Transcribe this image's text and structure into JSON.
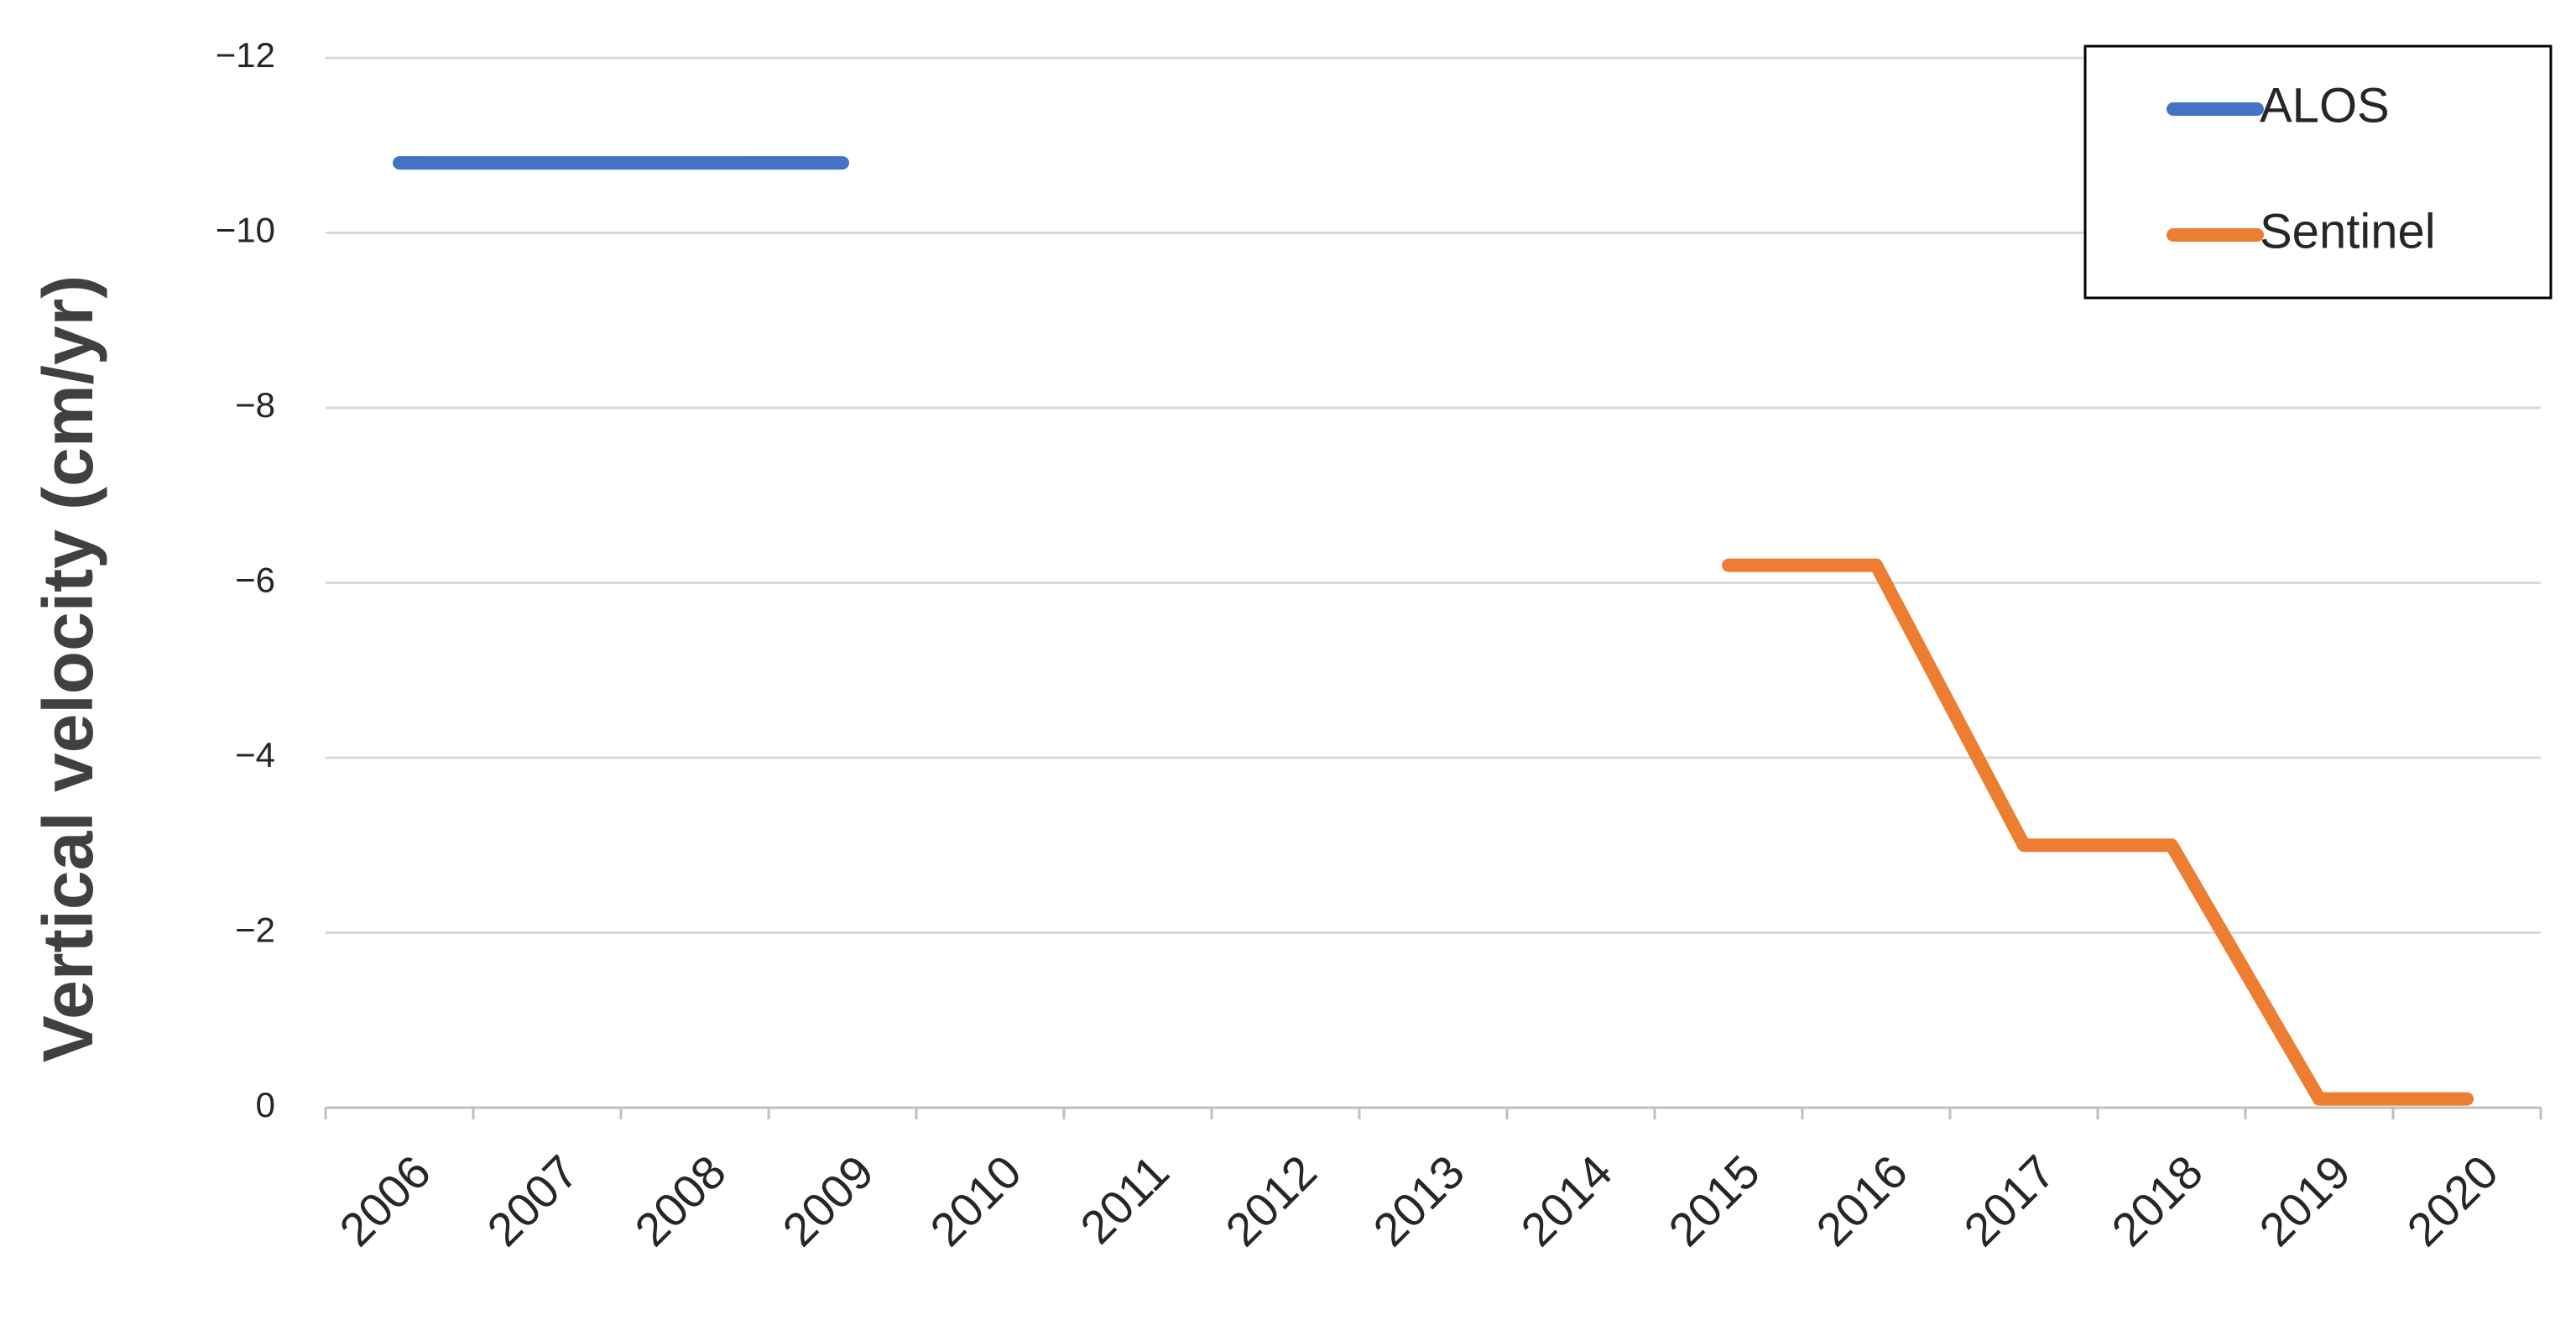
{
  "chart_data": {
    "type": "line",
    "y_label": "Vertical velocity (cm/yr)",
    "categories": [
      "2006",
      "2007",
      "2008",
      "2009",
      "2010",
      "2011",
      "2012",
      "2013",
      "2014",
      "2015",
      "2016",
      "2017",
      "2018",
      "2019",
      "2020"
    ],
    "series": [
      {
        "name": "ALOS",
        "color": "#4472c4",
        "values": [
          -10.8,
          -10.8,
          -10.8,
          -10.8,
          null,
          null,
          null,
          null,
          null,
          null,
          null,
          null,
          null,
          null,
          null
        ]
      },
      {
        "name": "Sentinel",
        "color": "#ed7d31",
        "values": [
          null,
          null,
          null,
          null,
          null,
          null,
          null,
          null,
          null,
          -6.2,
          -6.2,
          -3,
          -3,
          -0.1,
          -0.1
        ]
      }
    ],
    "ylim": [
      0,
      -12
    ],
    "yticks": [
      0,
      {
        "value": -2,
        "label": "−2"
      },
      {
        "value": -4,
        "label": "−4"
      },
      {
        "value": -6,
        "label": "−6"
      },
      {
        "value": -8,
        "label": "−8"
      },
      {
        "value": -10,
        "label": "−10"
      },
      {
        "value": -12,
        "label": "−12"
      }
    ],
    "grid": true,
    "legend": "top-right"
  }
}
